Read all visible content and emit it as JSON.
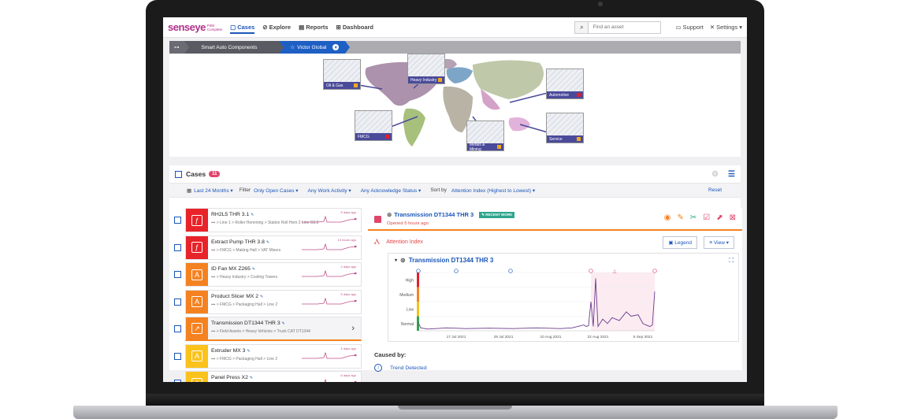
{
  "brand": {
    "name": "senseye",
    "sub_line1": "PdM",
    "sub_line2": "Complete"
  },
  "nav": {
    "cases": "Cases",
    "explore": "Explore",
    "reports": "Reports",
    "dashboard": "Dashboard"
  },
  "search": {
    "placeholder": "Find an asset"
  },
  "topbar": {
    "support": "Support",
    "settings": "Settings"
  },
  "breadcrumb": {
    "item1": "Smart Auto Components",
    "item2": "Victor Global"
  },
  "industries": [
    {
      "label": "Oil & Gas",
      "status_color": "#f0a81c"
    },
    {
      "label": "Heavy Industry",
      "status_color": "#f0a81c"
    },
    {
      "label": "Automotive",
      "status_color": "#e0202a"
    },
    {
      "label": "FMCG",
      "status_color": "#e0202a"
    },
    {
      "label": "Metals & Mining",
      "status_color": "#f0a81c"
    },
    {
      "label": "Service",
      "status_color": "#f0a81c"
    }
  ],
  "cases": {
    "title": "Cases",
    "count": "11",
    "filter": {
      "date_range": "Last 24 Months",
      "filter_label": "Filter",
      "status": "Only Open Cases",
      "work_activity": "Any Work Activity",
      "ack_status": "Any Acknowledge Status",
      "sort_label": "Sort by",
      "sort_value": "Attention Index (Highest to Lowest)",
      "reset": "Reset"
    },
    "items": [
      {
        "name": "RH2L5 THR 3.1",
        "path": "▪▪▪ > Line 1 > Roller Hemming > Station Roll Hem 2 Line C0.5",
        "ago": "5 days ago",
        "color": "#e8232a",
        "icon": "ƒ"
      },
      {
        "name": "Extract Pump THR 3.8",
        "path": "▪▪▪ > FMCG > Making Hall > VAT Mixers",
        "ago": "10 hours ago",
        "color": "#e8232a",
        "icon": "ƒ"
      },
      {
        "name": "ID Fan MX Z265",
        "path": "▪▪▪ > Heavy Industry > Cooling Towers",
        "ago": "2 days ago",
        "color": "#f58220",
        "icon": "A"
      },
      {
        "name": "Product Slicer MX 2",
        "path": "▪▪▪ > FMCG > Packaging Hall > Line 2",
        "ago": "5 days ago",
        "color": "#f58220",
        "icon": "A"
      },
      {
        "name": "Transmission DT1344 THR 3",
        "path": "▪▪▪ > Field Assets > Heavy Vehicles > Truck CAT DT1344",
        "ago": "",
        "color": "#f58220",
        "icon": "↗"
      },
      {
        "name": "Extruder MX 3",
        "path": "▪▪▪ > FMCG > Packaging Hall > Line 2",
        "ago": "4 days ago",
        "color": "#fbc21b",
        "icon": "A"
      },
      {
        "name": "Panel Press X2",
        "path": "",
        "ago": "6 days ago",
        "color": "#fbc21b",
        "icon": "A"
      }
    ]
  },
  "detail": {
    "title": "Transmission DT1344 THR 3",
    "tag": "RECENT WORK",
    "opened": "Opened 5 hours ago",
    "attention_label": "Attention Index",
    "legend_btn": "Legend",
    "view_btn": "View",
    "chart_title": "Transmission DT1344 THR 3",
    "caused_by": "Caused by:",
    "trend": "Trend Detected"
  },
  "chart_data": {
    "type": "line",
    "title": "Transmission DT1344 THR 3",
    "y_categories": [
      "Normal",
      "Low",
      "Medium",
      "High"
    ],
    "x_tick_labels": [
      "17 Jul 2021",
      "29 Jul 2021",
      "10 Aug 2021",
      "22 Aug 2021",
      "5 Sep 2021"
    ],
    "x_start": 0,
    "x_end": 100,
    "series": [
      {
        "values": [
          [
            0,
            0.55
          ],
          [
            1,
            0.2
          ],
          [
            4,
            0.12
          ],
          [
            12,
            0.2
          ],
          [
            20,
            0.15
          ],
          [
            30,
            0.18
          ],
          [
            40,
            0.15
          ],
          [
            50,
            0.2
          ],
          [
            60,
            0.15
          ],
          [
            65,
            0.2
          ],
          [
            70,
            0.4
          ],
          [
            71,
            0.3
          ],
          [
            72,
            0.35
          ],
          [
            73,
            2.0
          ],
          [
            74,
            0.3
          ],
          [
            75,
            3.6
          ],
          [
            76,
            0.3
          ],
          [
            78,
            0.8
          ],
          [
            80,
            0.5
          ],
          [
            82,
            0.9
          ],
          [
            85,
            0.7
          ],
          [
            88,
            1.3
          ],
          [
            90,
            1.0
          ],
          [
            93,
            1.1
          ],
          [
            95,
            0.5
          ],
          [
            97,
            0.35
          ],
          [
            98,
            0.3
          ],
          [
            99,
            0.4
          ],
          [
            100,
            2.7
          ]
        ]
      }
    ],
    "grid": true
  }
}
